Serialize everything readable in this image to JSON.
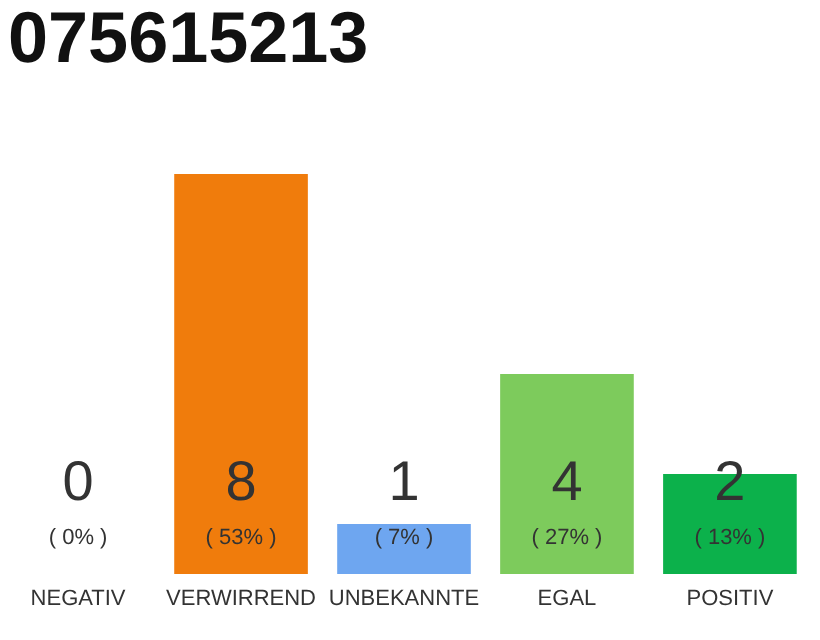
{
  "chart_data": {
    "type": "bar",
    "title": "075615213",
    "categories": [
      "NEGATIV",
      "VERWIRREND",
      "UNBEKANNTE",
      "EGAL",
      "POSITIV"
    ],
    "values": [
      0,
      8,
      1,
      4,
      2
    ],
    "colors": [
      "#f07c0c",
      "#f07c0c",
      "#6ea6f0",
      "#7dcb5c",
      "#0cb14b"
    ],
    "ylim": [
      0,
      8
    ],
    "data_labels": true,
    "annotations": [
      "( 0% )",
      "( 53% )",
      "( 7% )",
      "( 27% )",
      "( 13% )"
    ]
  }
}
